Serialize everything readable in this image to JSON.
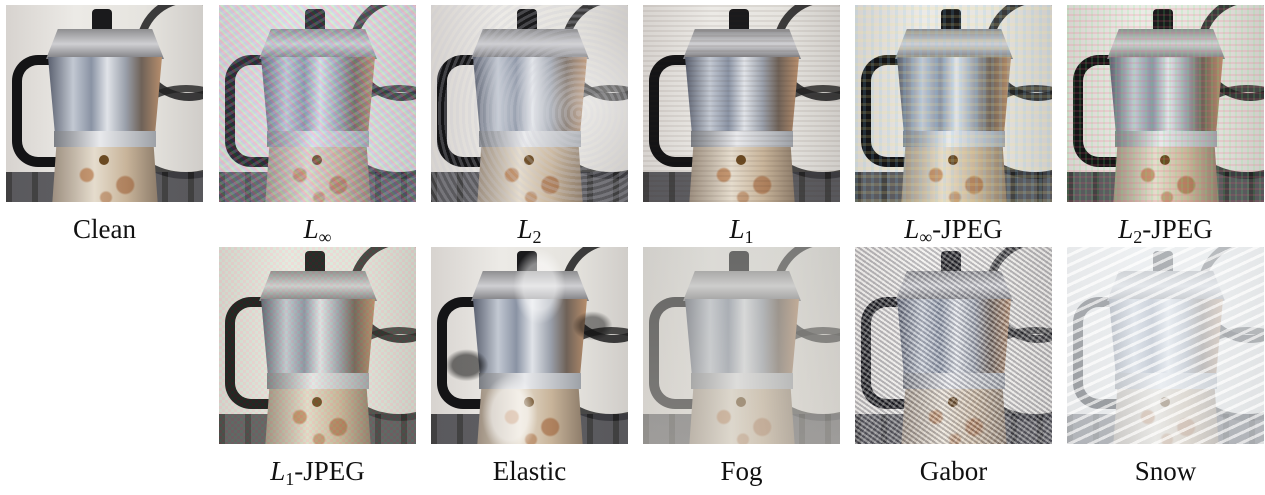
{
  "panels": [
    {
      "label_main": "Clean",
      "label_sub": "",
      "label_suffix": "",
      "effect": "clean"
    },
    {
      "label_main": "L",
      "label_sub": "∞",
      "label_suffix": "",
      "effect": "linf"
    },
    {
      "label_main": "L",
      "label_sub": "2",
      "label_suffix": "",
      "effect": "l2"
    },
    {
      "label_main": "L",
      "label_sub": "1",
      "label_suffix": "",
      "effect": "l1"
    },
    {
      "label_main": "L",
      "label_sub": "∞",
      "label_suffix": "-JPEG",
      "effect": "linf-jpeg"
    },
    {
      "label_main": "L",
      "label_sub": "2",
      "label_suffix": "-JPEG",
      "effect": "l2-jpeg"
    },
    {
      "label_main": "L",
      "label_sub": "1",
      "label_suffix": "-JPEG",
      "effect": "l1-jpeg"
    },
    {
      "label_main": "Elastic",
      "label_sub": "",
      "label_suffix": "",
      "effect": "elastic"
    },
    {
      "label_main": "Fog",
      "label_sub": "",
      "label_suffix": "",
      "effect": "fog"
    },
    {
      "label_main": "Gabor",
      "label_sub": "",
      "label_suffix": "",
      "effect": "gabor"
    },
    {
      "label_main": "Snow",
      "label_sub": "",
      "label_suffix": "",
      "effect": "snow"
    }
  ]
}
